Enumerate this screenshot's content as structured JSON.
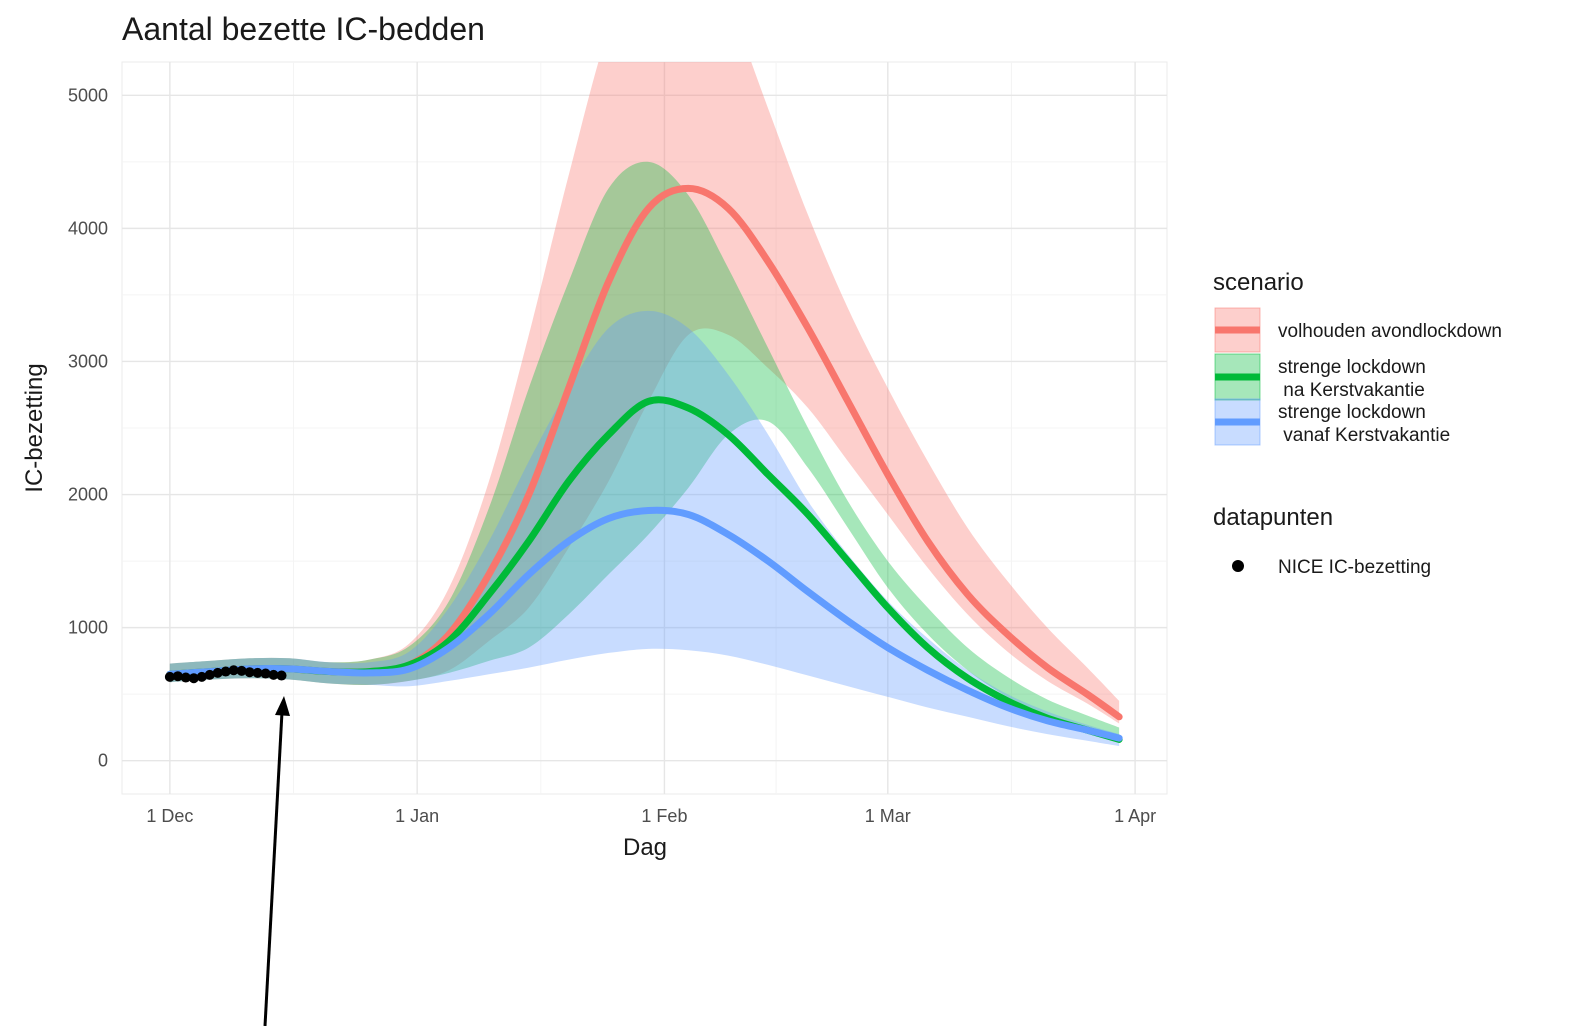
{
  "chart_data": {
    "type": "line",
    "title": "Aantal bezette IC-bedden",
    "xlabel": "Dag",
    "ylabel": "IC-bezetting",
    "x_ticks": [
      {
        "day": 0,
        "label": "1 Dec"
      },
      {
        "day": 31,
        "label": "1 Jan"
      },
      {
        "day": 62,
        "label": "1 Feb"
      },
      {
        "day": 90,
        "label": "1 Mar"
      },
      {
        "day": 121,
        "label": "1 Apr"
      }
    ],
    "y_ticks": [
      0,
      1000,
      2000,
      3000,
      4000,
      5000
    ],
    "xlim": [
      "2020-11-25",
      "2021-04-05"
    ],
    "ylim": [
      -250,
      5250
    ],
    "grid": true,
    "legend_position": "right",
    "legend_groups": [
      {
        "title": "scenario",
        "entries": [
          "volhouden avondlockdown",
          "strenge lockdown\n na Kerstvakantie",
          "strenge lockdown\n vanaf Kerstvakantie"
        ]
      },
      {
        "title": "datapunten",
        "entries": [
          "NICE IC-bezetting"
        ]
      }
    ],
    "series": [
      {
        "name": "volhouden avondlockdown",
        "color": "#F8766D",
        "points": [
          [
            0,
            650
          ],
          [
            5,
            670
          ],
          [
            10,
            690
          ],
          [
            15,
            690
          ],
          [
            20,
            670
          ],
          [
            25,
            670
          ],
          [
            30,
            720
          ],
          [
            35,
            950
          ],
          [
            40,
            1400
          ],
          [
            45,
            2000
          ],
          [
            50,
            2800
          ],
          [
            55,
            3600
          ],
          [
            60,
            4150
          ],
          [
            65,
            4300
          ],
          [
            70,
            4150
          ],
          [
            75,
            3750
          ],
          [
            80,
            3250
          ],
          [
            85,
            2700
          ],
          [
            90,
            2150
          ],
          [
            95,
            1650
          ],
          [
            100,
            1250
          ],
          [
            105,
            950
          ],
          [
            110,
            700
          ],
          [
            115,
            500
          ],
          [
            119,
            330
          ]
        ],
        "band": [
          [
            0,
            590,
            730
          ],
          [
            5,
            610,
            750
          ],
          [
            10,
            620,
            770
          ],
          [
            15,
            610,
            770
          ],
          [
            20,
            580,
            740
          ],
          [
            25,
            570,
            760
          ],
          [
            30,
            600,
            880
          ],
          [
            35,
            680,
            1300
          ],
          [
            40,
            900,
            2100
          ],
          [
            45,
            1150,
            3200
          ],
          [
            50,
            1600,
            4400
          ],
          [
            55,
            2100,
            5500
          ],
          [
            60,
            2700,
            6200
          ],
          [
            65,
            3200,
            6300
          ],
          [
            70,
            3200,
            5700
          ],
          [
            75,
            2950,
            4900
          ],
          [
            80,
            2650,
            4100
          ],
          [
            85,
            2250,
            3400
          ],
          [
            90,
            1850,
            2800
          ],
          [
            95,
            1450,
            2250
          ],
          [
            100,
            1100,
            1750
          ],
          [
            105,
            820,
            1350
          ],
          [
            110,
            600,
            1000
          ],
          [
            115,
            430,
            700
          ],
          [
            119,
            280,
            450
          ]
        ]
      },
      {
        "name": "strenge lockdown\n na Kerstvakantie",
        "color": "#00BA38",
        "points": [
          [
            0,
            650
          ],
          [
            5,
            670
          ],
          [
            10,
            690
          ],
          [
            15,
            690
          ],
          [
            20,
            670
          ],
          [
            25,
            670
          ],
          [
            30,
            720
          ],
          [
            35,
            900
          ],
          [
            40,
            1250
          ],
          [
            45,
            1650
          ],
          [
            50,
            2100
          ],
          [
            55,
            2450
          ],
          [
            60,
            2700
          ],
          [
            65,
            2650
          ],
          [
            70,
            2450
          ],
          [
            75,
            2150
          ],
          [
            80,
            1850
          ],
          [
            85,
            1500
          ],
          [
            90,
            1150
          ],
          [
            95,
            850
          ],
          [
            100,
            620
          ],
          [
            105,
            450
          ],
          [
            110,
            320
          ],
          [
            115,
            230
          ],
          [
            119,
            160
          ]
        ],
        "band": [
          [
            0,
            590,
            730
          ],
          [
            5,
            610,
            750
          ],
          [
            10,
            620,
            770
          ],
          [
            15,
            610,
            770
          ],
          [
            20,
            580,
            740
          ],
          [
            25,
            570,
            760
          ],
          [
            30,
            600,
            860
          ],
          [
            35,
            660,
            1200
          ],
          [
            40,
            750,
            1900
          ],
          [
            45,
            850,
            2800
          ],
          [
            50,
            1100,
            3600
          ],
          [
            55,
            1400,
            4300
          ],
          [
            60,
            1700,
            4500
          ],
          [
            65,
            2050,
            4250
          ],
          [
            70,
            2450,
            3700
          ],
          [
            75,
            2550,
            3100
          ],
          [
            80,
            2200,
            2500
          ],
          [
            85,
            1750,
            1950
          ],
          [
            90,
            1300,
            1500
          ],
          [
            95,
            950,
            1150
          ],
          [
            100,
            680,
            850
          ],
          [
            105,
            480,
            630
          ],
          [
            110,
            340,
            460
          ],
          [
            115,
            240,
            340
          ],
          [
            119,
            140,
            250
          ]
        ]
      },
      {
        "name": "strenge lockdown\n vanaf Kerstvakantie",
        "color": "#619CFF",
        "points": [
          [
            0,
            650
          ],
          [
            5,
            670
          ],
          [
            10,
            690
          ],
          [
            15,
            690
          ],
          [
            20,
            670
          ],
          [
            25,
            660
          ],
          [
            30,
            690
          ],
          [
            35,
            850
          ],
          [
            40,
            1100
          ],
          [
            45,
            1400
          ],
          [
            50,
            1650
          ],
          [
            55,
            1820
          ],
          [
            60,
            1880
          ],
          [
            65,
            1850
          ],
          [
            70,
            1700
          ],
          [
            75,
            1500
          ],
          [
            80,
            1270
          ],
          [
            85,
            1050
          ],
          [
            90,
            850
          ],
          [
            95,
            680
          ],
          [
            100,
            530
          ],
          [
            105,
            400
          ],
          [
            110,
            300
          ],
          [
            115,
            230
          ],
          [
            119,
            170
          ]
        ],
        "band": [
          [
            0,
            590,
            730
          ],
          [
            5,
            610,
            750
          ],
          [
            10,
            620,
            770
          ],
          [
            15,
            610,
            770
          ],
          [
            20,
            580,
            740
          ],
          [
            25,
            570,
            740
          ],
          [
            30,
            560,
            820
          ],
          [
            35,
            600,
            1150
          ],
          [
            40,
            650,
            1650
          ],
          [
            45,
            700,
            2250
          ],
          [
            50,
            760,
            2800
          ],
          [
            55,
            810,
            3250
          ],
          [
            60,
            840,
            3380
          ],
          [
            65,
            830,
            3250
          ],
          [
            70,
            790,
            2900
          ],
          [
            75,
            720,
            2450
          ],
          [
            80,
            640,
            1950
          ],
          [
            85,
            560,
            1550
          ],
          [
            90,
            480,
            1200
          ],
          [
            95,
            400,
            920
          ],
          [
            100,
            330,
            680
          ],
          [
            105,
            260,
            500
          ],
          [
            110,
            200,
            370
          ],
          [
            115,
            150,
            270
          ],
          [
            119,
            110,
            200
          ]
        ]
      },
      {
        "name": "NICE IC-bezetting",
        "type": "scatter",
        "color": "#000000",
        "points": [
          [
            0,
            630
          ],
          [
            1,
            635
          ],
          [
            2,
            625
          ],
          [
            3,
            620
          ],
          [
            4,
            630
          ],
          [
            5,
            645
          ],
          [
            6,
            660
          ],
          [
            7,
            670
          ],
          [
            8,
            680
          ],
          [
            9,
            675
          ],
          [
            10,
            665
          ],
          [
            11,
            660
          ],
          [
            12,
            655
          ],
          [
            13,
            645
          ],
          [
            14,
            640
          ]
        ]
      }
    ]
  }
}
